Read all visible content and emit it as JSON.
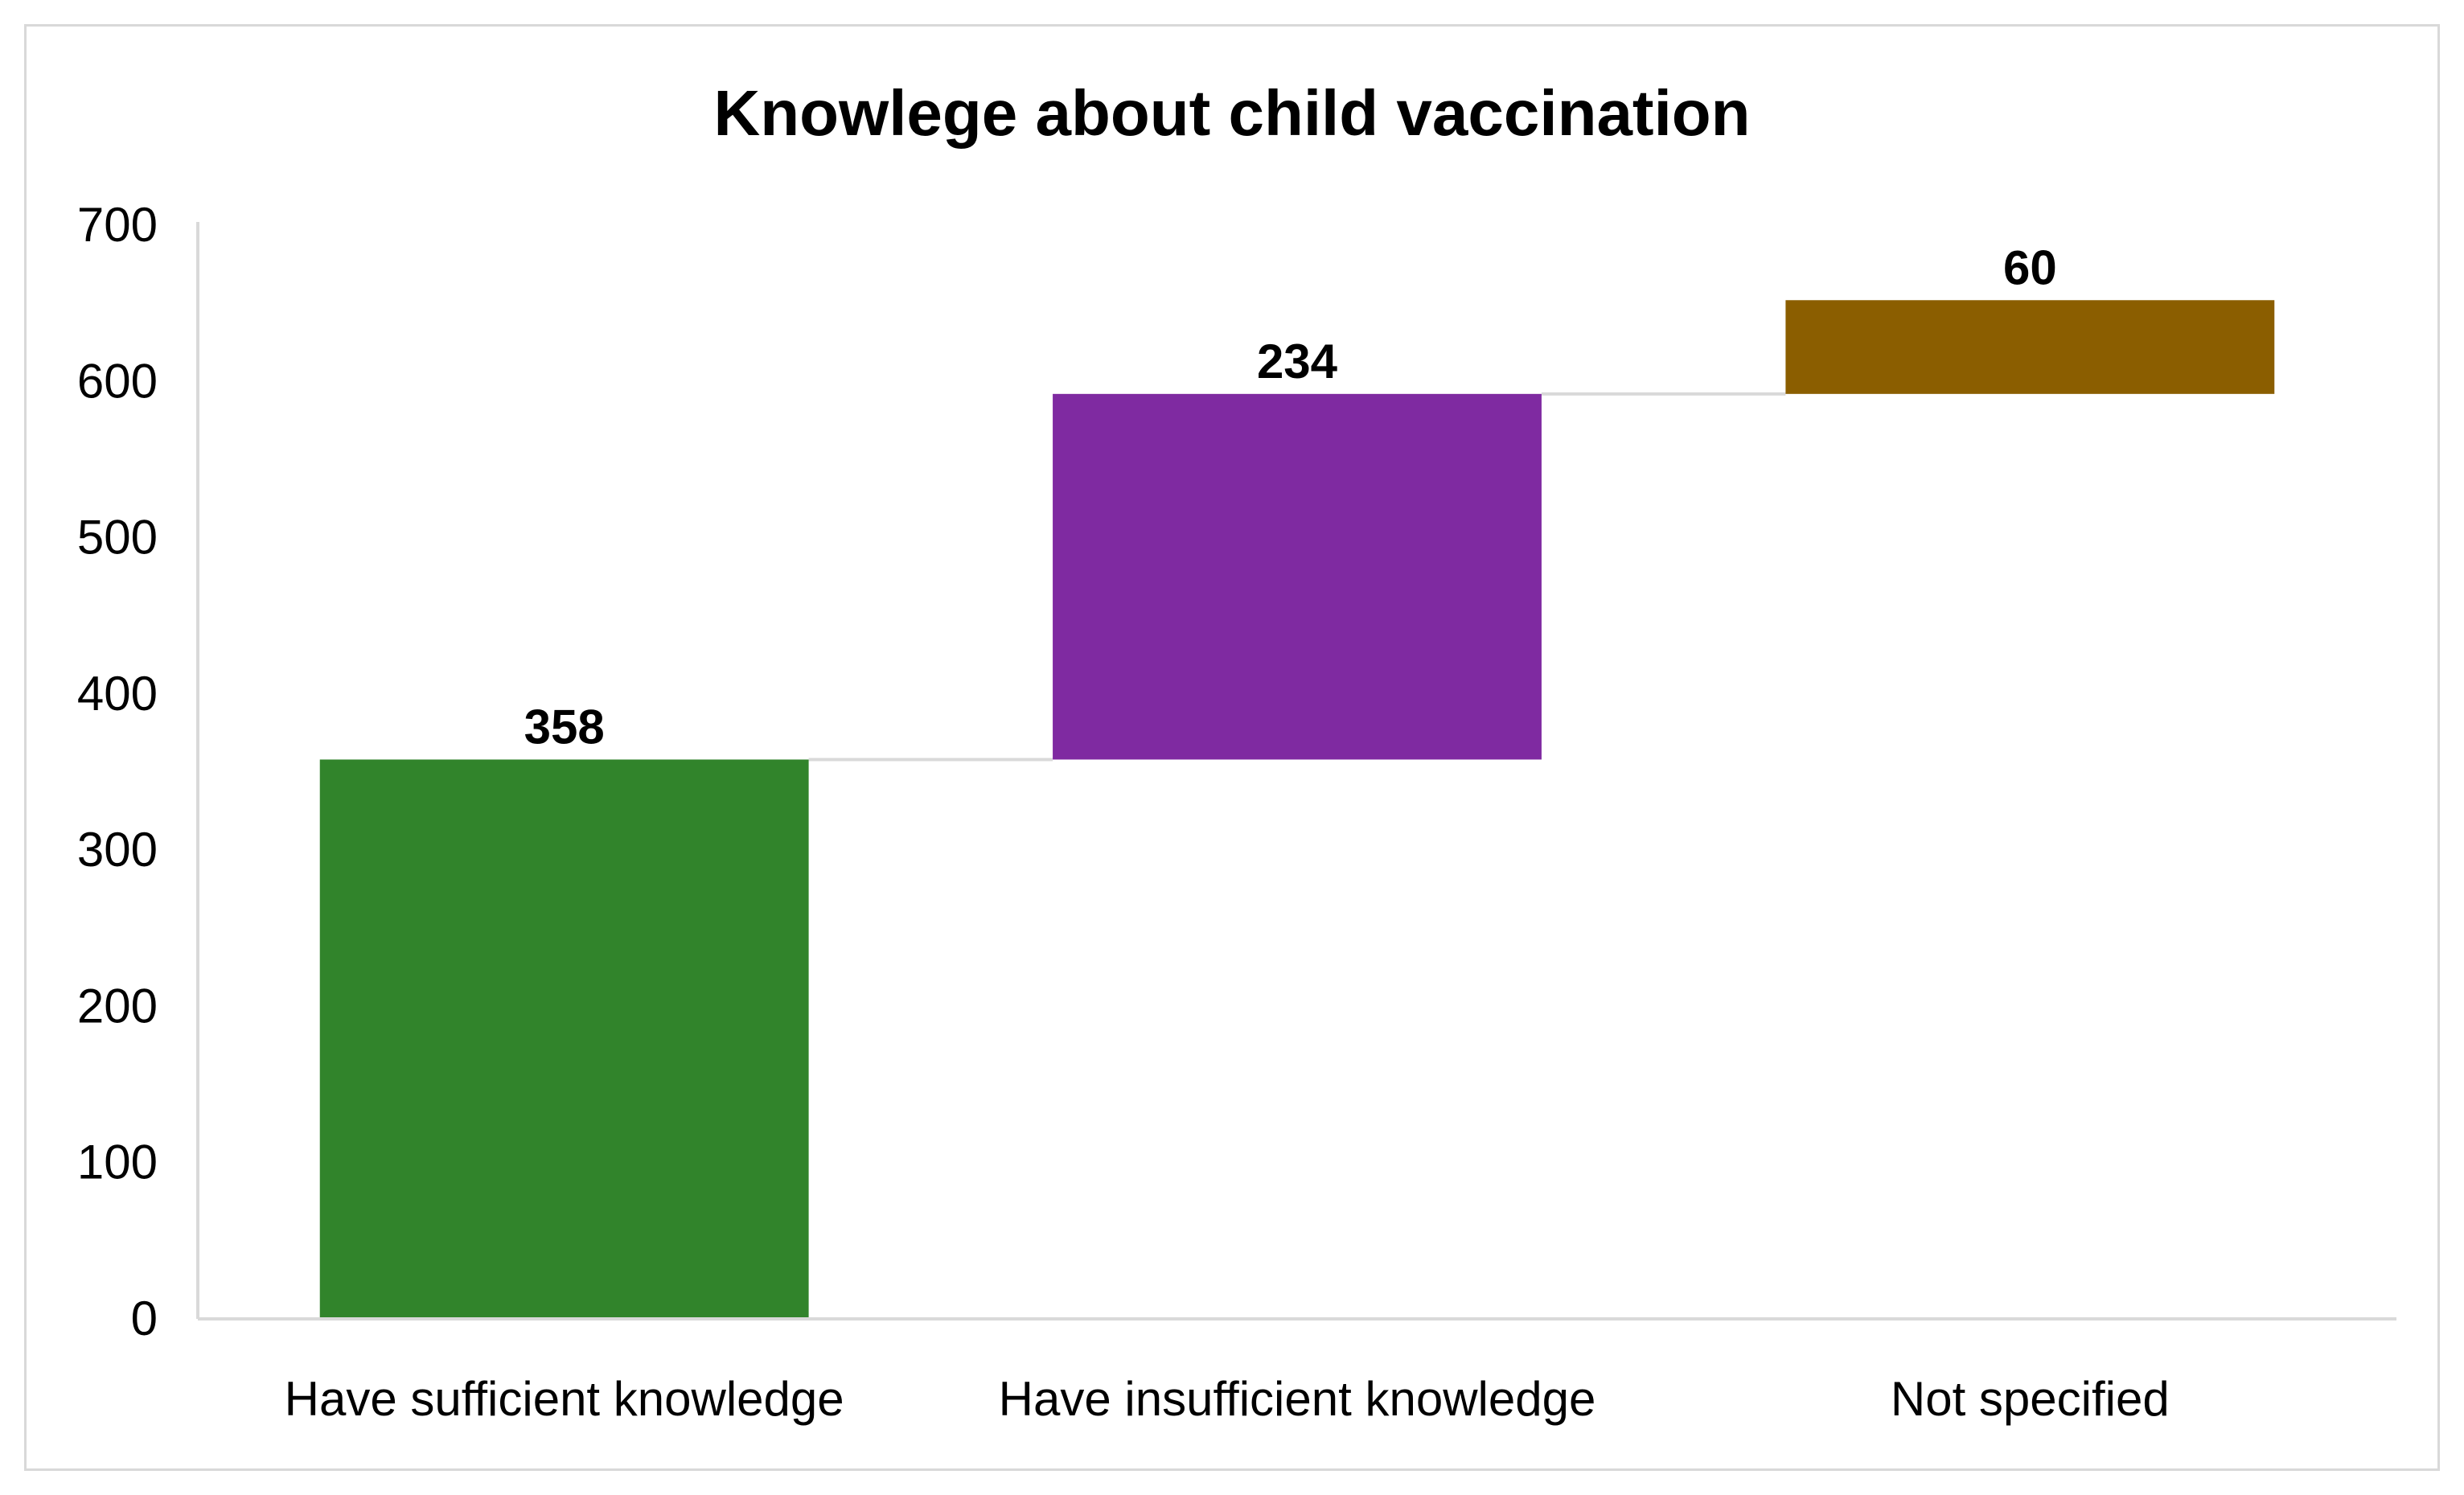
{
  "chart_data": {
    "type": "bar",
    "subtype": "waterfall",
    "title": "Knowlege about child vaccination",
    "xlabel": "",
    "ylabel": "",
    "categories": [
      "Have sufficient knowledge",
      "Have insufficient knowledge",
      "Not specified"
    ],
    "values": [
      358,
      234,
      60
    ],
    "data_labels": [
      "358",
      "234",
      "60"
    ],
    "ylim": [
      0,
      700
    ],
    "yticks": [
      0,
      100,
      200,
      300,
      400,
      500,
      600,
      700
    ],
    "ytick_labels": [
      "0",
      "100",
      "200",
      "300",
      "400",
      "500",
      "600",
      "700"
    ],
    "colors": [
      "#31842b",
      "#7f2aa1",
      "#8b5e00"
    ],
    "connector_color": "#d9d9d9",
    "grid": false,
    "legend": "none"
  }
}
